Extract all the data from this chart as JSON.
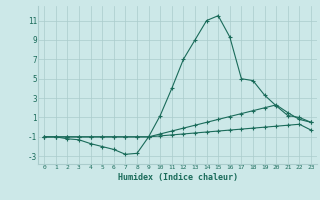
{
  "xlabel": "Humidex (Indice chaleur)",
  "background_color": "#cce8e8",
  "grid_color": "#aacccc",
  "line_color": "#1a6b5a",
  "xlim": [
    -0.5,
    23.5
  ],
  "ylim": [
    -3.8,
    12.5
  ],
  "xticks": [
    0,
    1,
    2,
    3,
    4,
    5,
    6,
    7,
    8,
    9,
    10,
    11,
    12,
    13,
    14,
    15,
    16,
    17,
    18,
    19,
    20,
    21,
    22,
    23
  ],
  "yticks": [
    -3,
    -1,
    1,
    3,
    5,
    7,
    9,
    11
  ],
  "line1_x": [
    0,
    1,
    2,
    3,
    4,
    5,
    6,
    7,
    8,
    9,
    10,
    11,
    12,
    13,
    14,
    15,
    16,
    17,
    18,
    19,
    20,
    21,
    22,
    23
  ],
  "line1_y": [
    -1,
    -1,
    -1.2,
    -1.3,
    -1.7,
    -2.0,
    -2.3,
    -2.8,
    -2.7,
    -1.0,
    1.2,
    4.0,
    7.0,
    9.0,
    11.0,
    11.5,
    9.3,
    5.0,
    4.8,
    3.3,
    2.2,
    1.2,
    1.0,
    0.5
  ],
  "line2_x": [
    0,
    1,
    2,
    3,
    4,
    5,
    6,
    7,
    8,
    9,
    10,
    11,
    12,
    13,
    14,
    15,
    16,
    17,
    18,
    19,
    20,
    21,
    22,
    23
  ],
  "line2_y": [
    -1,
    -1,
    -1,
    -1,
    -1,
    -1,
    -1,
    -1,
    -1,
    -1,
    -0.7,
    -0.4,
    -0.1,
    0.2,
    0.5,
    0.8,
    1.1,
    1.4,
    1.7,
    2.0,
    2.3,
    1.5,
    0.8,
    0.5
  ],
  "line3_x": [
    0,
    1,
    2,
    3,
    4,
    5,
    6,
    7,
    8,
    9,
    10,
    11,
    12,
    13,
    14,
    15,
    16,
    17,
    18,
    19,
    20,
    21,
    22,
    23
  ],
  "line3_y": [
    -1,
    -1,
    -1,
    -1,
    -1,
    -1,
    -1,
    -1,
    -1,
    -1,
    -0.9,
    -0.8,
    -0.7,
    -0.6,
    -0.5,
    -0.4,
    -0.3,
    -0.2,
    -0.1,
    0.0,
    0.1,
    0.2,
    0.3,
    -0.3
  ]
}
